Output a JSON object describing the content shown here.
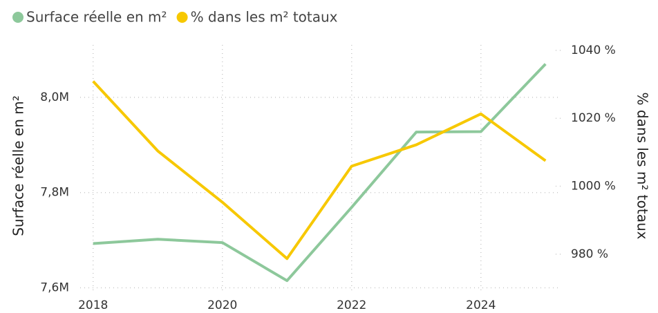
{
  "chart_data": {
    "type": "line",
    "x": [
      2018,
      2019,
      2020,
      2021,
      2022,
      2023,
      2024,
      2025
    ],
    "xlim": [
      2017.8,
      2025.2
    ],
    "xticks": [
      2018,
      2020,
      2022,
      2024
    ],
    "ylabel": "Surface réelle en m²",
    "y2label": "% dans les m² totaux",
    "ylim": [
      7595000,
      8110000
    ],
    "yticks": [
      {
        "value": 7600000,
        "label": "7,6M"
      },
      {
        "value": 7800000,
        "label": "7,8M"
      },
      {
        "value": 8000000,
        "label": "8,0M"
      }
    ],
    "y2lim": [
      969.4,
      1041.6
    ],
    "y2ticks": [
      {
        "value": 980,
        "label": "980 %"
      },
      {
        "value": 1000,
        "label": "1000 %"
      },
      {
        "value": 1020,
        "label": "1020 %"
      },
      {
        "value": 1040,
        "label": "1040 %"
      }
    ],
    "grid": true,
    "series": [
      {
        "name": "Surface réelle en m²",
        "color": "#8dc89b",
        "values": [
          7693000,
          7702000,
          7695000,
          7615000,
          7769000,
          7927000,
          7928000,
          8070000
        ]
      },
      {
        "name": "% dans les m² totaux",
        "color": "#f7c800",
        "axis": "y2",
        "values": [
          1030.9,
          1010.4,
          995.3,
          978.7,
          1005.9,
          1012.2,
          1021.3,
          1007.5
        ]
      }
    ]
  }
}
